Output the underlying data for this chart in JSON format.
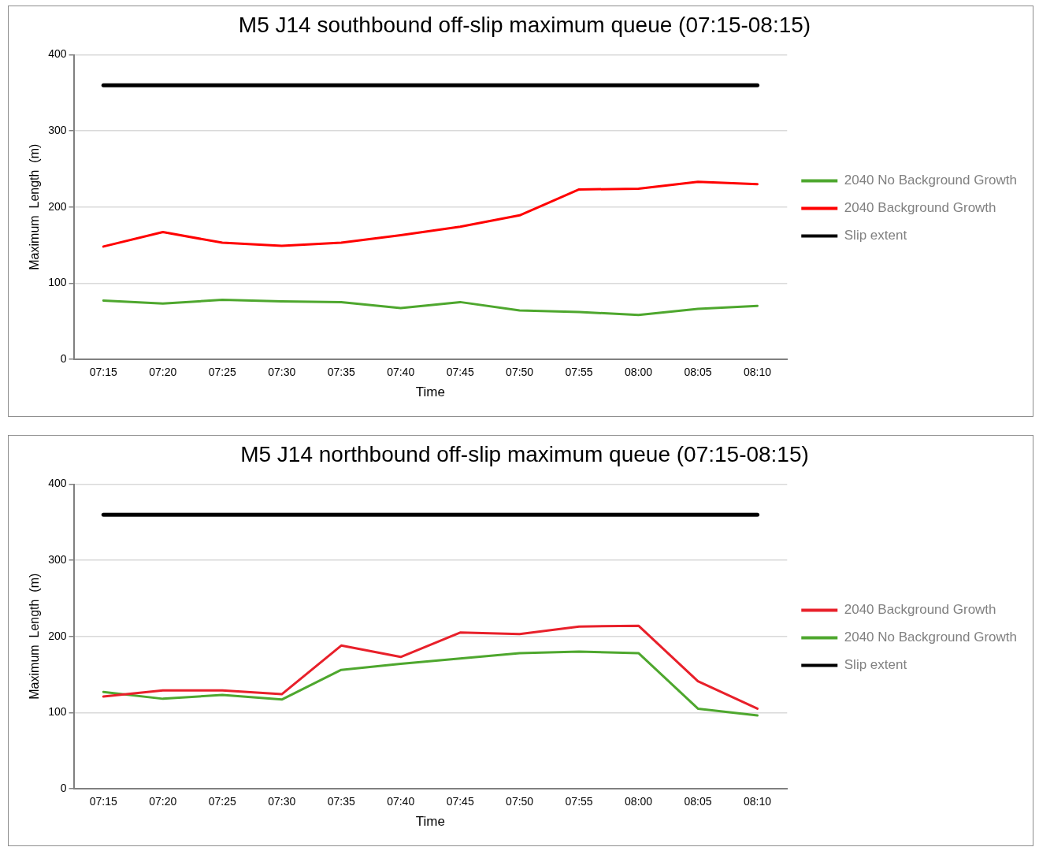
{
  "chart_data": [
    {
      "type": "line",
      "title": "M5 J14 southbound off-slip maximum queue (07:15-08:15)",
      "xlabel": "Time",
      "ylabel": "Maximum  Length  (m)",
      "categories": [
        "07:15",
        "07:20",
        "07:25",
        "07:30",
        "07:35",
        "07:40",
        "07:45",
        "07:50",
        "07:55",
        "08:00",
        "08:05",
        "08:10"
      ],
      "series": [
        {
          "name": "2040 No Background Growth",
          "color": "#4ea72e",
          "values": [
            77,
            73,
            78,
            76,
            75,
            67,
            75,
            64,
            62,
            58,
            66,
            70
          ]
        },
        {
          "name": "2040 Background Growth",
          "color": "#ff0000",
          "values": [
            148,
            167,
            153,
            149,
            153,
            163,
            174,
            189,
            223,
            224,
            233,
            230
          ]
        },
        {
          "name": "Slip extent",
          "color": "#000000",
          "values": [
            360,
            360,
            360,
            360,
            360,
            360,
            360,
            360,
            360,
            360,
            360,
            360
          ]
        }
      ],
      "ylim": [
        0,
        400
      ],
      "yticks": [
        0,
        100,
        200,
        300,
        400
      ],
      "grid": "y",
      "legend": "right",
      "marker": "none",
      "line_style": "solid"
    },
    {
      "type": "line",
      "title": "M5 J14 northbound off-slip maximum queue (07:15-08:15)",
      "xlabel": "Time",
      "ylabel": "Maximum  Length  (m)",
      "categories": [
        "07:15",
        "07:20",
        "07:25",
        "07:30",
        "07:35",
        "07:40",
        "07:45",
        "07:50",
        "07:55",
        "08:00",
        "08:05",
        "08:10"
      ],
      "series": [
        {
          "name": "2040 Background Growth",
          "color": "#e8202a",
          "values": [
            121,
            129,
            129,
            124,
            188,
            173,
            205,
            203,
            213,
            214,
            141,
            105
          ]
        },
        {
          "name": "2040 No Background Growth",
          "color": "#4ea72e",
          "values": [
            127,
            118,
            123,
            117,
            156,
            164,
            171,
            178,
            180,
            178,
            105,
            96
          ]
        },
        {
          "name": "Slip extent",
          "color": "#000000",
          "values": [
            360,
            360,
            360,
            360,
            360,
            360,
            360,
            360,
            360,
            360,
            360,
            360
          ]
        }
      ],
      "ylim": [
        0,
        400
      ],
      "yticks": [
        0,
        100,
        200,
        300,
        400
      ],
      "grid": "y",
      "legend": "right",
      "marker": "none",
      "line_style": "solid"
    }
  ]
}
